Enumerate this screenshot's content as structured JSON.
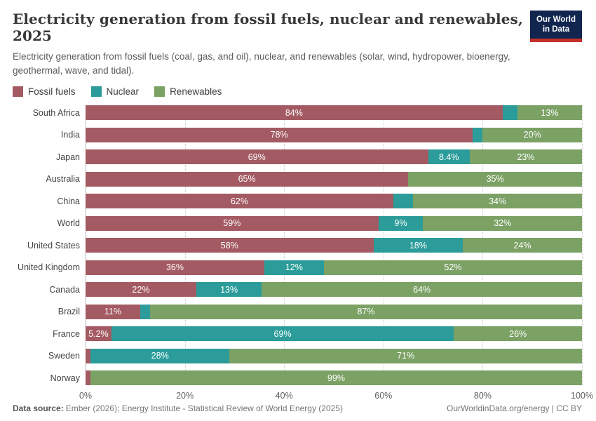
{
  "header": {
    "title": "Electricity generation from fossil fuels, nuclear and renewables, 2025",
    "subtitle": "Electricity generation from fossil fuels (coal, gas, and oil), nuclear, and renewables (solar, wind, hydropower, bioenergy, geothermal, wave, and tidal).",
    "logo": {
      "line1": "Our World",
      "line2": "in Data",
      "bg_color": "#11254f",
      "accent_color": "#c5302a"
    }
  },
  "chart_data": {
    "type": "bar",
    "orientation": "horizontal",
    "stacked": true,
    "unit": "%",
    "xlim": [
      0,
      100
    ],
    "x_ticks": [
      "0%",
      "20%",
      "40%",
      "60%",
      "80%",
      "100%"
    ],
    "grid": "dashed-vertical",
    "legend_position": "top",
    "title": "Electricity generation from fossil fuels, nuclear and renewables, 2025",
    "series": [
      {
        "name": "Fossil fuels",
        "color": "#a35a62"
      },
      {
        "name": "Nuclear",
        "color": "#2b9c99"
      },
      {
        "name": "Renewables",
        "color": "#7ba164"
      }
    ],
    "rows": [
      {
        "country": "South Africa",
        "values": [
          84,
          3,
          13
        ],
        "labels": [
          "84%",
          "",
          "13%"
        ]
      },
      {
        "country": "India",
        "values": [
          78,
          2,
          20
        ],
        "labels": [
          "78%",
          "",
          "20%"
        ]
      },
      {
        "country": "Japan",
        "values": [
          69,
          8.4,
          22.6
        ],
        "labels": [
          "69%",
          "8.4%",
          "23%"
        ]
      },
      {
        "country": "Australia",
        "values": [
          65,
          0,
          35
        ],
        "labels": [
          "65%",
          "",
          "35%"
        ]
      },
      {
        "country": "China",
        "values": [
          62,
          4,
          34
        ],
        "labels": [
          "62%",
          "",
          "34%"
        ]
      },
      {
        "country": "World",
        "values": [
          59,
          9,
          32
        ],
        "labels": [
          "59%",
          "9%",
          "32%"
        ]
      },
      {
        "country": "United States",
        "values": [
          58,
          18,
          24
        ],
        "labels": [
          "58%",
          "18%",
          "24%"
        ]
      },
      {
        "country": "United Kingdom",
        "values": [
          36,
          12,
          52
        ],
        "labels": [
          "36%",
          "12%",
          "52%"
        ]
      },
      {
        "country": "Canada",
        "values": [
          22.3,
          13.2,
          64.5
        ],
        "labels": [
          "22%",
          "13%",
          "64%"
        ]
      },
      {
        "country": "Brazil",
        "values": [
          11,
          2,
          87
        ],
        "labels": [
          "11%",
          "",
          "87%"
        ]
      },
      {
        "country": "France",
        "values": [
          5.2,
          69,
          25.8
        ],
        "labels": [
          "5.2%",
          "69%",
          "26%"
        ]
      },
      {
        "country": "Sweden",
        "values": [
          1,
          28,
          71
        ],
        "labels": [
          "",
          "28%",
          "71%"
        ]
      },
      {
        "country": "Norway",
        "values": [
          1,
          0,
          99
        ],
        "labels": [
          "",
          "",
          "99%"
        ]
      }
    ]
  },
  "footer": {
    "source_label": "Data source:",
    "source_text": "Ember (2026); Energy Institute - Statistical Review of World Energy (2025)",
    "credit": "OurWorldinData.org/energy | CC BY"
  }
}
